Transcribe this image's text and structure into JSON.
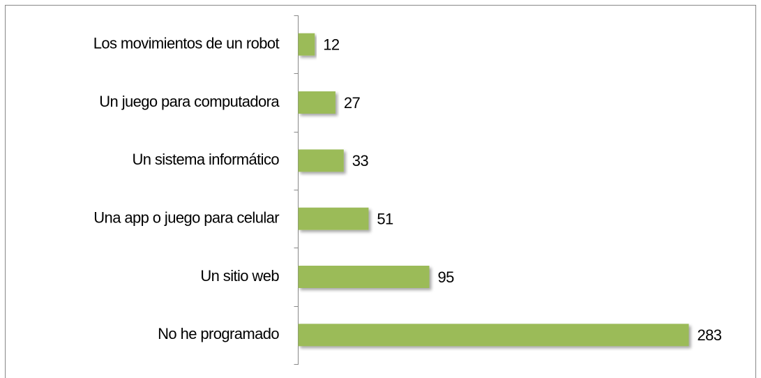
{
  "chart_data": {
    "type": "bar",
    "orientation": "horizontal",
    "categories": [
      "Los movimientos de un robot",
      "Un juego para computadora",
      "Un sistema informático",
      "Una app o juego para celular",
      "Un sitio web",
      "No he programado"
    ],
    "values": [
      12,
      27,
      33,
      51,
      95,
      283
    ],
    "color": "#9bbb59"
  }
}
